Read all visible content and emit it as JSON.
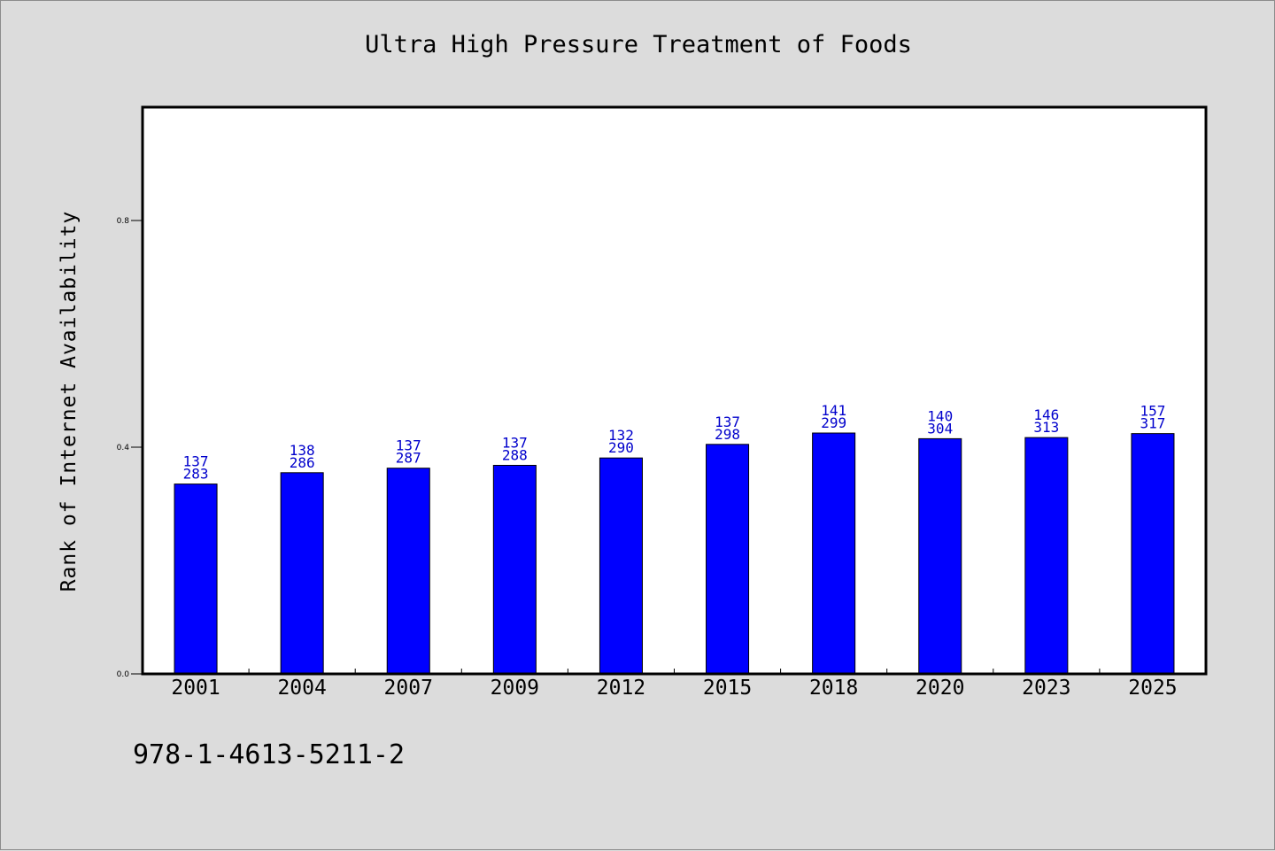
{
  "chart_data": {
    "type": "bar",
    "title": "Ultra High Pressure Treatment of Foods",
    "xlabel": "",
    "ylabel": "Rank of Internet Availability",
    "categories": [
      "2001",
      "2004",
      "2007",
      "2009",
      "2012",
      "2015",
      "2018",
      "2020",
      "2023",
      "2025"
    ],
    "series": [
      {
        "values": [
          0.335,
          0.355,
          0.363,
          0.368,
          0.381,
          0.405,
          0.425,
          0.415,
          0.417,
          0.424
        ],
        "color": "#0000ff"
      }
    ],
    "data_labels_top": [
      "137",
      "138",
      "137",
      "137",
      "132",
      "137",
      "141",
      "140",
      "146",
      "157"
    ],
    "data_labels_bottom": [
      "283",
      "286",
      "287",
      "288",
      "290",
      "298",
      "299",
      "304",
      "313",
      "317"
    ],
    "data_label_color": "#0000cc",
    "yticks": [
      0.0,
      0.4,
      0.8
    ],
    "ytick_labels": [
      "0.0",
      "0.4",
      "0.8"
    ],
    "ylim": [
      0,
      1.0
    ],
    "grid": false,
    "legend": "none"
  },
  "footnote": "978-1-4613-5211-2"
}
